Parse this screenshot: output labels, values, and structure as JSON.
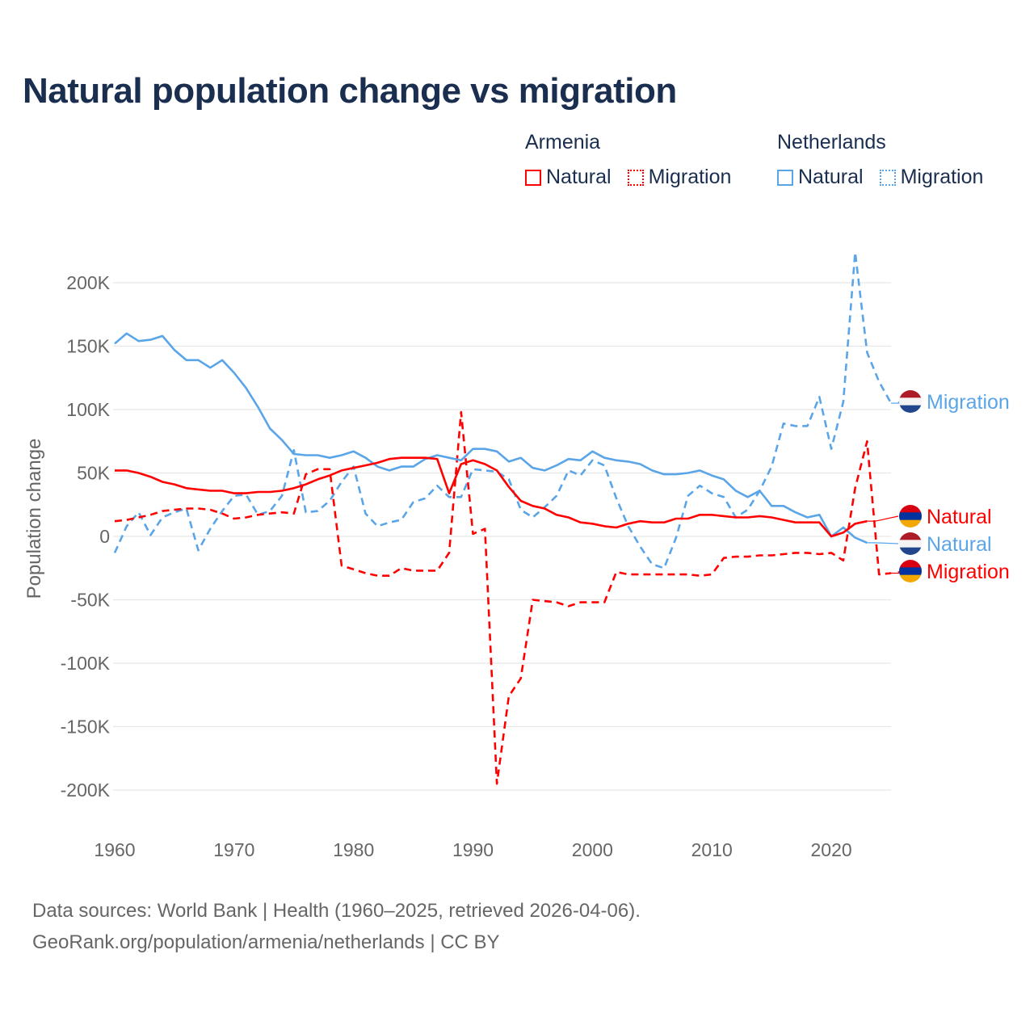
{
  "title": "Natural population change vs migration",
  "legend": {
    "groups": [
      {
        "name": "Armenia",
        "color": "#ff0000",
        "items": [
          "Natural",
          "Migration"
        ]
      },
      {
        "name": "Netherlands",
        "color": "#5aa5e8",
        "items": [
          "Natural",
          "Migration"
        ]
      }
    ]
  },
  "footer": {
    "line1": "Data sources: World Bank | Health (1960–2025, retrieved 2026-04-06).",
    "line2": "GeoRank.org/population/armenia/netherlands | CC BY"
  },
  "chart_data": {
    "type": "line",
    "title": "Natural population change vs migration",
    "xlabel": "",
    "ylabel": "Population change",
    "xlim": [
      1960,
      2025
    ],
    "ylim": [
      -200000,
      225000
    ],
    "x_ticks": [
      "1960",
      "1970",
      "1980",
      "1990",
      "2000",
      "2010",
      "2020"
    ],
    "y_ticks": [
      {
        "value": 200000,
        "label": "200K"
      },
      {
        "value": 150000,
        "label": "150K"
      },
      {
        "value": 100000,
        "label": "100K"
      },
      {
        "value": 50000,
        "label": "50K"
      },
      {
        "value": 0,
        "label": "0"
      },
      {
        "value": -50000,
        "label": "-50K"
      },
      {
        "value": -100000,
        "label": "-100K"
      },
      {
        "value": -150000,
        "label": "-150K"
      },
      {
        "value": -200000,
        "label": "-200K"
      }
    ],
    "grid": true,
    "legend_position": "top-right",
    "x_start": 1960,
    "units": "thousands",
    "series": [
      {
        "name": "Netherlands Natural",
        "end_label": "Natural",
        "country": "Netherlands",
        "color": "#5aa5e8",
        "dashed": false,
        "values": [
          152,
          160,
          154,
          155,
          158,
          147,
          139,
          139,
          133,
          139,
          129,
          117,
          102,
          85,
          76,
          65,
          64,
          64,
          62,
          64,
          67,
          62,
          55,
          52,
          55,
          55,
          61,
          64,
          62,
          60,
          69,
          69,
          67,
          59,
          62,
          54,
          52,
          56,
          61,
          60,
          67,
          62,
          60,
          59,
          57,
          52,
          49,
          49,
          50,
          52,
          48,
          45,
          36,
          31,
          36,
          24,
          24,
          19,
          15,
          17,
          0,
          7,
          -1,
          -5
        ]
      },
      {
        "name": "Netherlands Migration",
        "end_label": "Migration",
        "country": "Netherlands",
        "color": "#5aa5e8",
        "dashed": true,
        "values": [
          -13,
          8,
          19,
          1,
          15,
          19,
          22,
          -11,
          6,
          20,
          32,
          33,
          17,
          20,
          32,
          68,
          19,
          20,
          28,
          43,
          55,
          18,
          8,
          11,
          13,
          27,
          30,
          40,
          31,
          31,
          53,
          52,
          51,
          45,
          21,
          15,
          23,
          32,
          52,
          48,
          60,
          56,
          30,
          8,
          -8,
          -22,
          -25,
          -1,
          32,
          40,
          34,
          31,
          15,
          21,
          36,
          55,
          89,
          87,
          87,
          110,
          69,
          106,
          224,
          145,
          122,
          105
        ]
      },
      {
        "name": "Armenia Natural",
        "end_label": "Natural",
        "country": "Armenia",
        "color": "#ff0000",
        "dashed": false,
        "values": [
          52,
          52,
          50,
          47,
          43,
          41,
          38,
          37,
          36,
          36,
          34,
          34,
          35,
          35,
          36,
          38,
          41,
          45,
          48,
          52,
          54,
          56,
          58,
          61,
          62,
          62,
          62,
          61,
          34,
          57,
          60,
          57,
          52,
          39,
          28,
          24,
          22,
          17,
          15,
          11,
          10,
          8,
          7,
          10,
          12,
          11,
          11,
          14,
          14,
          17,
          17,
          16,
          15,
          15,
          16,
          15,
          13,
          11,
          11,
          11,
          0,
          3,
          10,
          12
        ]
      },
      {
        "name": "Armenia Migration",
        "end_label": "Migration",
        "country": "Armenia",
        "color": "#ff0000",
        "dashed": true,
        "values": [
          12,
          13,
          15,
          17,
          20,
          21,
          22,
          22,
          21,
          18,
          14,
          15,
          17,
          18,
          19,
          18,
          49,
          53,
          53,
          -23,
          -26,
          -29,
          -31,
          -31,
          -25,
          -27,
          -27,
          -27,
          -13,
          98,
          2,
          6,
          -195,
          -126,
          -112,
          -50,
          -51,
          -52,
          -55,
          -52,
          -52,
          -52,
          -28,
          -30,
          -30,
          -30,
          -30,
          -30,
          -30,
          -31,
          -30,
          -17,
          -16,
          -16,
          -15,
          -15,
          -14,
          -13,
          -13,
          -14,
          -13,
          -19,
          38,
          75,
          -30,
          -29
        ]
      }
    ]
  }
}
